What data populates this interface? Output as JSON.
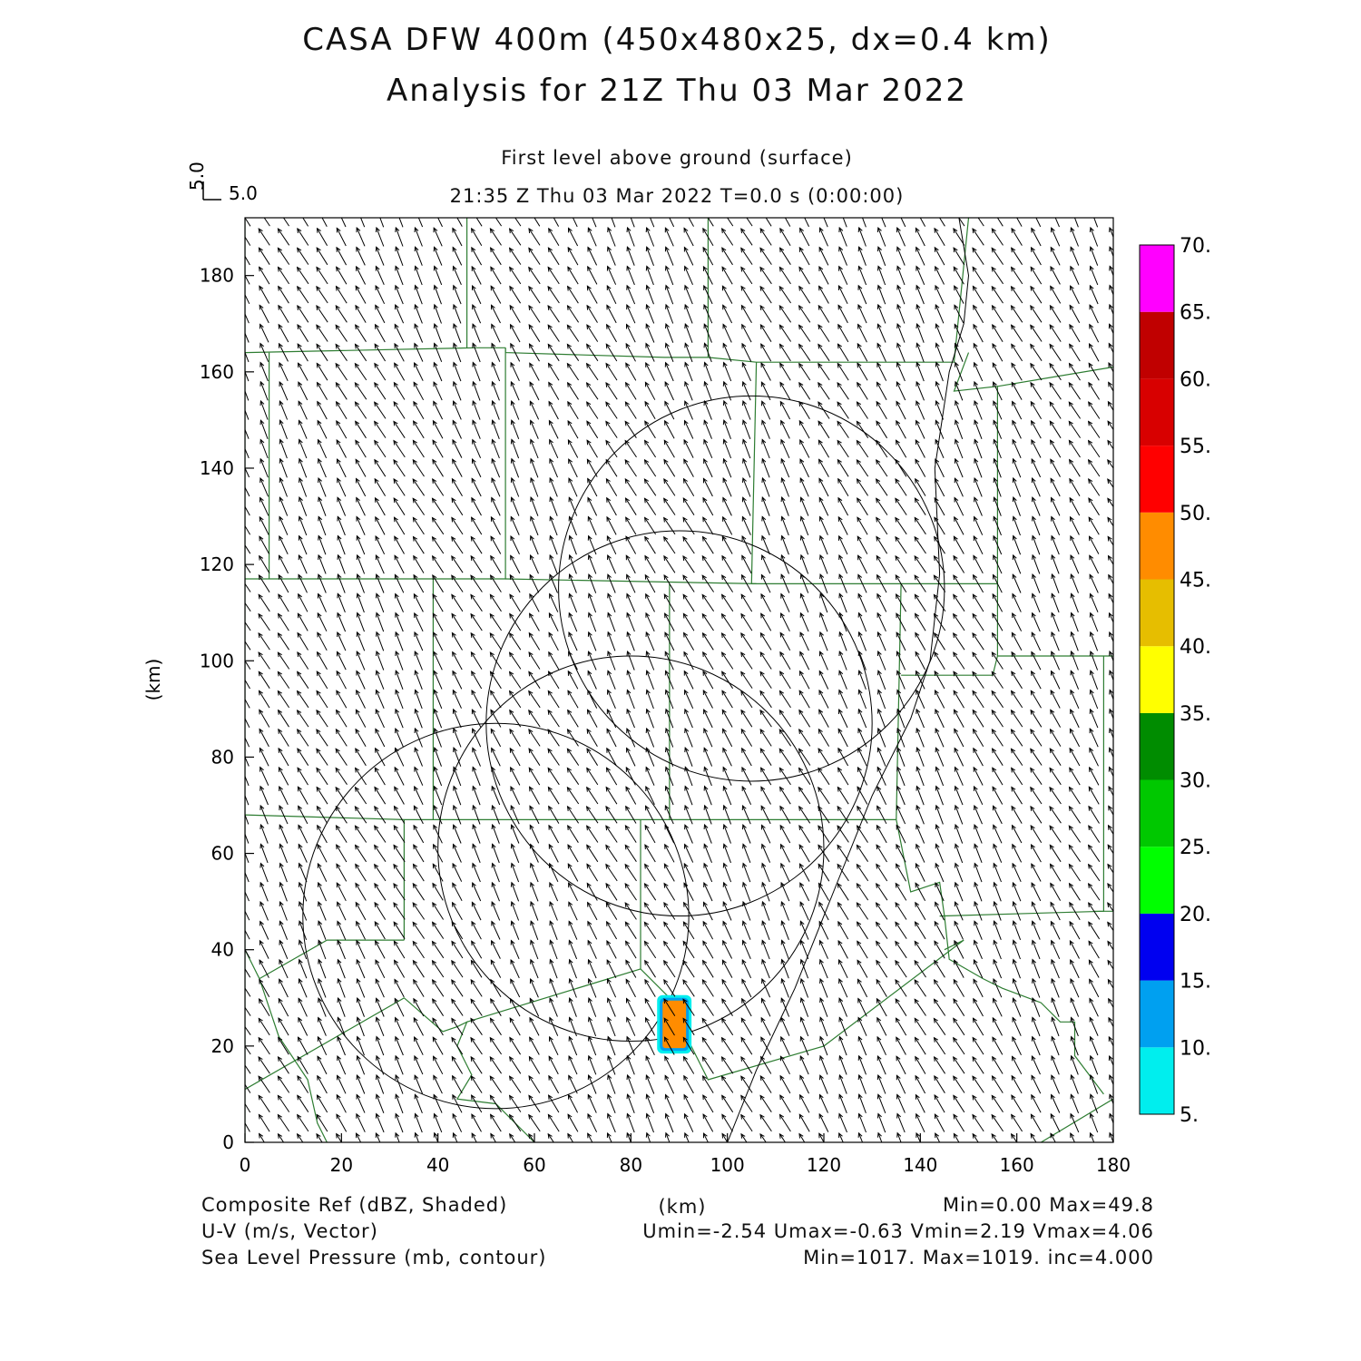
{
  "header": {
    "title_line1": "CASA DFW 400m (450x480x25, dx=0.4 km)",
    "title_line2": "Analysis for 21Z Thu 03 Mar 2022",
    "level": "First level above ground (surface)",
    "time_line": "21:35 Z Thu 03 Mar 2022    T=0.0 s (0:00:00)",
    "ref_vector_v": "5.0",
    "ref_vector_u": "5.0"
  },
  "axes": {
    "ylabel": "(km)",
    "xlabel": "(km)"
  },
  "footer": {
    "l1": "Composite Ref (dBZ, Shaded)",
    "l2": "U-V (m/s, Vector)",
    "l3": "Sea Level Pressure (mb, contour)",
    "r1": "Min=0.00 Max=49.8",
    "r2": "Umin=-2.54 Umax=-0.63 Vmin=2.19 Vmax=4.06",
    "r3": "Min=1017. Max=1019. inc=4.000"
  },
  "chart_data": {
    "type": "heatmap",
    "xlim": [
      0,
      180
    ],
    "ylim": [
      0,
      192
    ],
    "x_ticks": [
      0,
      20,
      40,
      60,
      80,
      100,
      120,
      140,
      160,
      180
    ],
    "y_ticks": [
      0,
      20,
      40,
      60,
      80,
      100,
      120,
      140,
      160,
      180
    ],
    "colorbar": {
      "levels": [
        "5.",
        "10.",
        "15.",
        "20.",
        "25.",
        "30.",
        "35.",
        "40.",
        "45.",
        "50.",
        "55.",
        "60.",
        "65.",
        "70."
      ],
      "colors": [
        "#00eeee",
        "#00a0f0",
        "#0000f0",
        "#00ff00",
        "#00c800",
        "#008c00",
        "#ffff00",
        "#e6be00",
        "#ff8c00",
        "#ff0000",
        "#d80000",
        "#c00000",
        "#ff00ff"
      ]
    },
    "wind": {
      "u_mean": -1.6,
      "v_mean": 3.1,
      "grid_spacing_km": 4
    },
    "reflectivity_cell": {
      "x_range": [
        86,
        92
      ],
      "y_range": [
        19,
        30
      ],
      "max_dbz": 49.8,
      "colors": {
        "outer": "#00eeee",
        "mid": "#00a0f0",
        "inner": "#ff8c00"
      }
    },
    "radar_rings": [
      {
        "cx": 52,
        "cy": 47,
        "r": 40
      },
      {
        "cx": 80,
        "cy": 61,
        "r": 40
      },
      {
        "cx": 90,
        "cy": 87,
        "r": 40
      },
      {
        "cx": 105,
        "cy": 115,
        "r": 40
      }
    ],
    "county_color": "#2e7d32"
  }
}
